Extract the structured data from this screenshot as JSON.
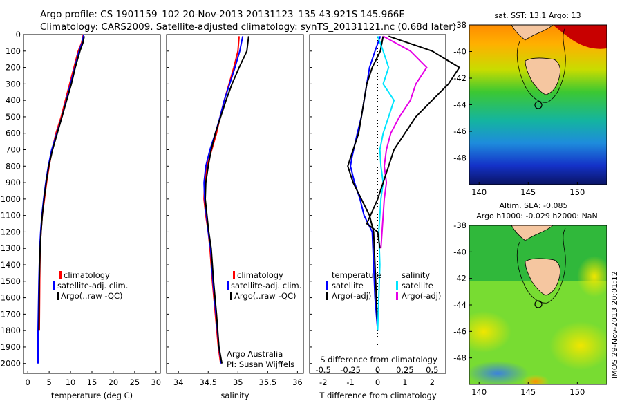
{
  "header": {
    "line1": "Argo profile: CS 1901159_102 20-Nov-2013 20131123_135 43.921S 145.966E",
    "line2": "Climatology: CARS2009. Satellite-adjusted climatology: synTS_20131121.nc (0.68d later)"
  },
  "watermark": "IMOS 29-Nov-2013 20:01:12",
  "colors": {
    "climatology": "#ff0000",
    "satellite": "#0000ff",
    "argo": "#000000",
    "sat_salinity": "#00e5ff",
    "argo_salinity": "#e600e6",
    "land": "#f5c6a0"
  },
  "chart_data": [
    {
      "type": "line",
      "name": "temperature-panel",
      "xlabel": "temperature (deg C)",
      "xlim": [
        -1,
        31
      ],
      "ylim": [
        2060,
        0
      ],
      "xticks": [
        "0",
        "5",
        "10",
        "15",
        "20",
        "25",
        "30"
      ],
      "yticks": [
        "0",
        "100",
        "200",
        "300",
        "400",
        "500",
        "600",
        "700",
        "800",
        "900",
        "1000",
        "1100",
        "1200",
        "1300",
        "1400",
        "1500",
        "1600",
        "1700",
        "1800",
        "1900",
        "2000"
      ],
      "legend": [
        "climatology",
        "satellite-adj. clim.",
        "Argo(..raw -QC)"
      ],
      "series": [
        {
          "name": "climatology",
          "color": "#ff0000",
          "x": [
            13.0,
            12.6,
            11.8,
            10.8,
            9.8,
            8.8,
            7.8,
            6.6,
            5.7,
            5.0,
            4.4,
            3.9,
            3.4,
            3.1,
            2.9,
            2.8,
            2.7
          ],
          "y": [
            0,
            50,
            100,
            200,
            300,
            400,
            500,
            600,
            700,
            800,
            900,
            1000,
            1100,
            1200,
            1300,
            1500,
            1800
          ]
        },
        {
          "name": "satellite-adj. clim.",
          "color": "#0000ff",
          "x": [
            13.1,
            12.7,
            12.0,
            11.0,
            10.0,
            9.0,
            8.0,
            6.8,
            5.6,
            4.8,
            4.2,
            3.7,
            3.3,
            3.0,
            2.8,
            2.6,
            2.4,
            2.4
          ],
          "y": [
            0,
            50,
            100,
            200,
            300,
            400,
            500,
            600,
            700,
            800,
            900,
            1000,
            1100,
            1200,
            1300,
            1500,
            1800,
            2000
          ]
        },
        {
          "name": "Argo(..raw -QC)",
          "color": "#000000",
          "x": [
            13.2,
            12.9,
            12.2,
            11.1,
            10.2,
            9.1,
            8.0,
            6.9,
            5.8,
            4.9,
            4.3,
            3.8,
            3.4,
            3.1,
            2.9,
            2.7,
            2.6
          ],
          "y": [
            10,
            50,
            100,
            200,
            300,
            400,
            500,
            600,
            700,
            800,
            900,
            1000,
            1100,
            1200,
            1300,
            1500,
            1800
          ]
        }
      ]
    },
    {
      "type": "line",
      "name": "salinity-panel",
      "xlabel": "salinity",
      "xlim": [
        33.8,
        36.1
      ],
      "ylim": [
        2060,
        0
      ],
      "xticks": [
        "34",
        "34.5",
        "35",
        "35.5",
        "36"
      ],
      "legend": [
        "climatology",
        "satellite-adj. clim.",
        "Argo(..raw -QC)"
      ],
      "annotation": [
        "Argo Australia",
        "PI: Susan Wijffels"
      ],
      "series": [
        {
          "name": "climatology",
          "color": "#ff0000",
          "x": [
            35.02,
            35.0,
            34.93,
            34.85,
            34.77,
            34.7,
            34.64,
            34.56,
            34.48,
            34.44,
            34.43,
            34.46,
            34.5,
            34.53,
            34.57,
            34.62,
            34.67,
            34.71
          ],
          "y": [
            10,
            100,
            200,
            300,
            400,
            500,
            600,
            700,
            800,
            900,
            1000,
            1100,
            1200,
            1300,
            1500,
            1700,
            1900,
            2000
          ]
        },
        {
          "name": "satellite-adj. clim.",
          "color": "#0000ff",
          "x": [
            35.08,
            35.03,
            34.95,
            34.86,
            34.77,
            34.7,
            34.62,
            34.53,
            34.46,
            34.43,
            34.44,
            34.47,
            34.5,
            34.54,
            34.58,
            34.63,
            34.68,
            34.72
          ],
          "y": [
            10,
            100,
            200,
            300,
            400,
            500,
            600,
            700,
            800,
            900,
            1000,
            1100,
            1200,
            1300,
            1500,
            1700,
            1900,
            2000
          ]
        },
        {
          "name": "Argo(..raw -QC)",
          "color": "#000000",
          "x": [
            35.18,
            35.15,
            35.02,
            34.9,
            34.8,
            34.71,
            34.62,
            34.55,
            34.5,
            34.46,
            34.45,
            34.48,
            34.51,
            34.55,
            34.59,
            34.64,
            34.68,
            34.73
          ],
          "y": [
            10,
            100,
            200,
            300,
            400,
            500,
            600,
            700,
            800,
            900,
            1000,
            1100,
            1200,
            1300,
            1500,
            1700,
            1900,
            2000
          ]
        }
      ]
    },
    {
      "type": "line",
      "name": "difference-panel",
      "xlabel": "T difference from climatology",
      "xlabel2": "S difference from climatology",
      "xlim": [
        -2.5,
        2.5
      ],
      "ylim": [
        2060,
        0
      ],
      "xticks": [
        "-2",
        "-1",
        "0",
        "1",
        "2"
      ],
      "xticks2": [
        "-0.5",
        "-0.25",
        "0",
        "0.25",
        "0.5"
      ],
      "legend_t": {
        "title": "temperature",
        "items": [
          "satellite",
          "Argo(-adj)"
        ]
      },
      "legend_s": {
        "title": "salinity",
        "items": [
          "satellite",
          "Argo(-adj)"
        ]
      },
      "series": [
        {
          "name": "T satellite",
          "color": "#0000ff",
          "x": [
            0.1,
            -0.1,
            -0.3,
            -0.4,
            -0.5,
            -0.6,
            -0.75,
            -0.95,
            -1.0,
            -0.85,
            -0.65,
            -0.5,
            -0.2,
            -0.15,
            -0.1,
            0.0
          ],
          "y": [
            10,
            100,
            200,
            300,
            400,
            500,
            600,
            750,
            800,
            900,
            1000,
            1100,
            1200,
            1400,
            1600,
            1800
          ]
        },
        {
          "name": "T Argo(-adj)",
          "color": "#000000",
          "x": [
            0.2,
            0.1,
            -0.2,
            -0.4,
            -0.5,
            -0.6,
            -0.7,
            -0.9,
            -1.1,
            -0.9,
            -0.6,
            -0.3,
            -0.15,
            -0.1,
            0.0
          ],
          "y": [
            10,
            100,
            200,
            300,
            400,
            500,
            600,
            700,
            800,
            900,
            1000,
            1100,
            1200,
            1400,
            1800
          ]
        },
        {
          "name": "S satellite",
          "color": "#00e5ff",
          "x": [
            0.0,
            0.05,
            0.1,
            0.05,
            0.15,
            0.1,
            0.05,
            0.02,
            0.03,
            0.05,
            0.03,
            0.02,
            0.01,
            0.02,
            0.0
          ],
          "y": [
            10,
            100,
            200,
            300,
            400,
            500,
            600,
            700,
            800,
            900,
            1000,
            1100,
            1200,
            1400,
            1800
          ]
        },
        {
          "name": "S Argo(-adj)",
          "color": "#e600e6",
          "x": [
            0.05,
            0.3,
            0.45,
            0.35,
            0.3,
            0.2,
            0.12,
            0.08,
            0.06,
            0.08,
            0.06,
            0.05,
            0.04,
            0.03
          ],
          "y": [
            10,
            100,
            200,
            300,
            400,
            500,
            600,
            700,
            800,
            900,
            1000,
            1100,
            1200,
            1300
          ]
        },
        {
          "name": "S Argo raw",
          "color": "#000000",
          "x": [
            0.1,
            0.5,
            0.75,
            0.65,
            0.5,
            0.35,
            0.25,
            0.15,
            0.1,
            0.05,
            0.0,
            -0.1,
            0.0,
            0.02
          ],
          "y": [
            10,
            100,
            200,
            300,
            400,
            500,
            600,
            700,
            800,
            900,
            1000,
            1150,
            1200,
            1300
          ]
        }
      ]
    },
    {
      "type": "heatmap",
      "name": "sst-map",
      "title": "sat. SST: 13.1  Argo: 13",
      "xticks": [
        "140",
        "145",
        "150"
      ],
      "yticks": [
        "-38",
        "-40",
        "-42",
        "-44",
        "-46",
        "-48"
      ],
      "xlim": [
        139,
        153
      ],
      "ylim": [
        -50,
        -38
      ],
      "float_position": [
        145.966,
        -43.921
      ]
    },
    {
      "type": "heatmap",
      "name": "sla-map",
      "title_line1": "Altim. SLA: -0.085",
      "title_line2": "Argo h1000: -0.029 h2000: NaN",
      "xticks": [
        "140",
        "145",
        "150"
      ],
      "yticks": [
        "-38",
        "-40",
        "-42",
        "-44",
        "-46",
        "-48"
      ],
      "xlim": [
        139,
        153
      ],
      "ylim": [
        -50,
        -38
      ],
      "float_position": [
        145.966,
        -43.921
      ]
    }
  ]
}
